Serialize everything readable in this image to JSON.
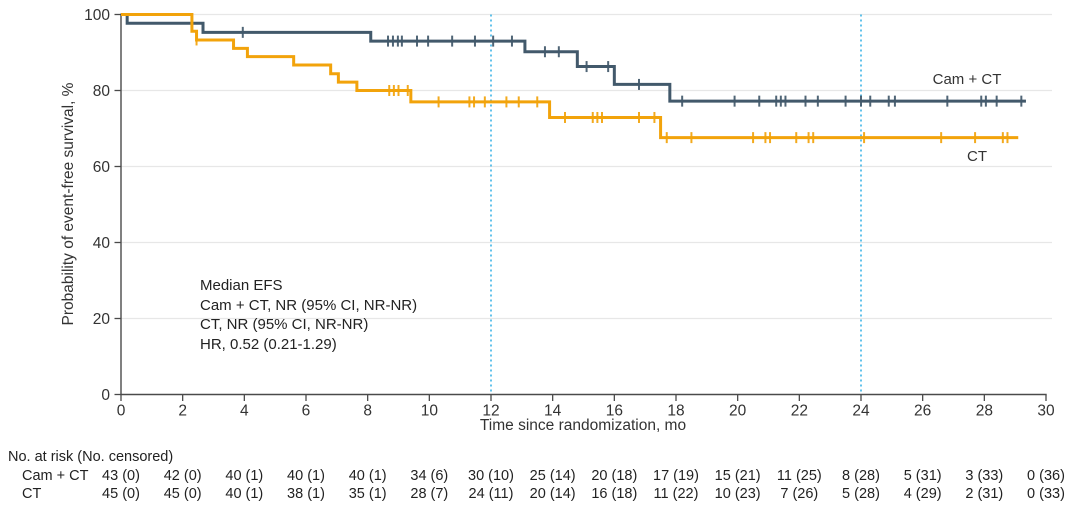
{
  "chart_data": {
    "type": "line",
    "subtype": "kaplan-meier-step",
    "title": "",
    "xlabel": "Time since randomization, mo",
    "ylabel": "Probability of event-free survival, %",
    "xlim": [
      0,
      30
    ],
    "ylim": [
      0,
      100
    ],
    "xticks": [
      0,
      2,
      4,
      6,
      8,
      10,
      12,
      14,
      16,
      18,
      20,
      22,
      24,
      26,
      28,
      30
    ],
    "yticks": [
      0,
      20,
      40,
      60,
      80,
      100
    ],
    "grid": "horizontal-light",
    "reference_lines_x": [
      12,
      24
    ],
    "reference_line_color": "#3BB3E6",
    "axis_color": "#4A4A4A",
    "grid_color": "#E7E7E7",
    "series": [
      {
        "name": "Cam + CT",
        "color": "#42596B",
        "steps": [
          [
            0,
            100
          ],
          [
            0.2,
            97.7
          ],
          [
            2.66,
            95.3
          ],
          [
            8.1,
            93.0
          ],
          [
            13.1,
            90.2
          ],
          [
            14.8,
            86.3
          ],
          [
            16.0,
            81.6
          ],
          [
            17.8,
            77.2
          ]
        ],
        "end_time": 29.35,
        "censors": [
          [
            3.95,
            95.3
          ],
          [
            8.66,
            93.0
          ],
          [
            8.82,
            93.0
          ],
          [
            8.98,
            93.0
          ],
          [
            9.11,
            93.0
          ],
          [
            9.6,
            93.0
          ],
          [
            9.96,
            93.0
          ],
          [
            10.74,
            93.0
          ],
          [
            11.48,
            93.0
          ],
          [
            12.07,
            93.0
          ],
          [
            12.68,
            93.0
          ],
          [
            13.75,
            90.2
          ],
          [
            14.2,
            90.2
          ],
          [
            15.1,
            86.3
          ],
          [
            15.8,
            86.3
          ],
          [
            16.8,
            81.6
          ],
          [
            18.2,
            77.2
          ],
          [
            19.9,
            77.2
          ],
          [
            20.7,
            77.2
          ],
          [
            21.25,
            77.2
          ],
          [
            21.4,
            77.2
          ],
          [
            21.55,
            77.2
          ],
          [
            22.2,
            77.2
          ],
          [
            22.6,
            77.2
          ],
          [
            23.5,
            77.2
          ],
          [
            24.0,
            77.2
          ],
          [
            24.3,
            77.2
          ],
          [
            24.9,
            77.2
          ],
          [
            25.1,
            77.2
          ],
          [
            26.8,
            77.2
          ],
          [
            27.9,
            77.2
          ],
          [
            28.05,
            77.2
          ],
          [
            28.4,
            77.2
          ],
          [
            29.2,
            77.2
          ]
        ]
      },
      {
        "name": "CT",
        "color": "#F2A30B",
        "steps": [
          [
            0,
            100
          ],
          [
            2.3,
            95.6
          ],
          [
            2.45,
            93.3
          ],
          [
            3.65,
            91.1
          ],
          [
            4.1,
            88.9
          ],
          [
            5.6,
            86.7
          ],
          [
            6.8,
            84.4
          ],
          [
            7.05,
            82.2
          ],
          [
            7.65,
            80.0
          ],
          [
            9.4,
            77.0
          ],
          [
            13.9,
            72.9
          ],
          [
            17.5,
            67.6
          ]
        ],
        "end_time": 29.1,
        "censors": [
          [
            2.45,
            93.3
          ],
          [
            8.7,
            80.0
          ],
          [
            8.85,
            80.0
          ],
          [
            9.0,
            80.0
          ],
          [
            9.3,
            80.0
          ],
          [
            10.3,
            77.0
          ],
          [
            11.3,
            77.0
          ],
          [
            11.45,
            77.0
          ],
          [
            11.8,
            77.0
          ],
          [
            12.5,
            77.0
          ],
          [
            12.9,
            77.0
          ],
          [
            13.5,
            77.0
          ],
          [
            14.4,
            72.9
          ],
          [
            15.3,
            72.9
          ],
          [
            15.45,
            72.9
          ],
          [
            15.6,
            72.9
          ],
          [
            16.8,
            72.9
          ],
          [
            17.3,
            72.9
          ],
          [
            17.7,
            67.6
          ],
          [
            18.5,
            67.6
          ],
          [
            20.5,
            67.6
          ],
          [
            20.9,
            67.6
          ],
          [
            21.05,
            67.6
          ],
          [
            21.9,
            67.6
          ],
          [
            22.3,
            67.6
          ],
          [
            22.45,
            67.6
          ],
          [
            24.1,
            67.6
          ],
          [
            26.6,
            67.6
          ],
          [
            27.7,
            67.6
          ],
          [
            28.6,
            67.6
          ],
          [
            28.75,
            67.6
          ]
        ]
      }
    ],
    "annotation": {
      "lines": [
        "Median EFS",
        "Cam + CT, NR (95% CI, NR-NR)",
        "CT, NR (95% CI, NR-NR)",
        "HR, 0.52 (0.21-1.29)"
      ]
    }
  },
  "risk_table": {
    "header": "No. at risk (No. censored)",
    "months": [
      0,
      2,
      4,
      6,
      8,
      10,
      12,
      14,
      16,
      18,
      20,
      22,
      24,
      26,
      28,
      30
    ],
    "rows": [
      {
        "label": "Cam + CT",
        "values": [
          "43 (0)",
          "42 (0)",
          "40 (1)",
          "40 (1)",
          "40 (1)",
          "34 (6)",
          "30 (10)",
          "25 (14)",
          "20 (18)",
          "17 (19)",
          "15 (21)",
          "11 (25)",
          "8 (28)",
          "5 (31)",
          "3 (33)",
          "0 (36)"
        ]
      },
      {
        "label": "CT",
        "values": [
          "45 (0)",
          "45 (0)",
          "40 (1)",
          "38 (1)",
          "35 (1)",
          "28 (7)",
          "24 (11)",
          "20 (14)",
          "16 (18)",
          "11 (22)",
          "10 (23)",
          "7 (26)",
          "5 (28)",
          "4 (29)",
          "2 (31)",
          "0 (33)"
        ]
      }
    ]
  },
  "colors": {
    "cam_ct": "#42596B",
    "ct": "#F2A30B",
    "reference_blue": "#3BB3E6",
    "grid": "#E7E7E7",
    "axis": "#4A4A4A",
    "text": "#333333"
  }
}
